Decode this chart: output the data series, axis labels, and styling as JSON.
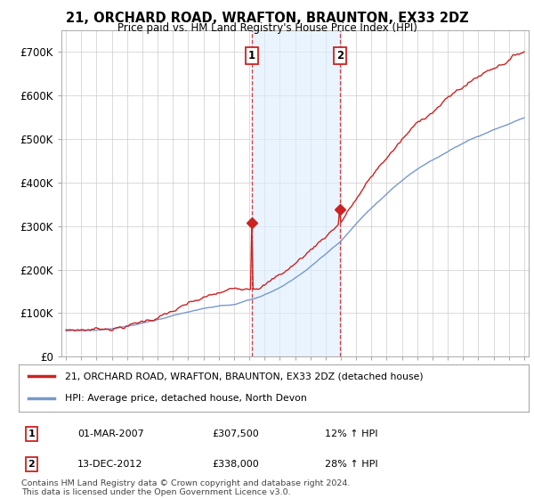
{
  "title": "21, ORCHARD ROAD, WRAFTON, BRAUNTON, EX33 2DZ",
  "subtitle": "Price paid vs. HM Land Registry's House Price Index (HPI)",
  "legend_line1": "21, ORCHARD ROAD, WRAFTON, BRAUNTON, EX33 2DZ (detached house)",
  "legend_line2": "HPI: Average price, detached house, North Devon",
  "annotation1_label": "1",
  "annotation1_date": "01-MAR-2007",
  "annotation1_price": "£307,500",
  "annotation1_hpi": "12% ↑ HPI",
  "annotation2_label": "2",
  "annotation2_date": "13-DEC-2012",
  "annotation2_price": "£338,000",
  "annotation2_hpi": "28% ↑ HPI",
  "footer": "Contains HM Land Registry data © Crown copyright and database right 2024.\nThis data is licensed under the Open Government Licence v3.0.",
  "hpi_color": "#7799cc",
  "price_color": "#cc2222",
  "annotation_box_color": "#cc2222",
  "shading_color": "#ddeeff",
  "ylim": [
    0,
    750000
  ],
  "yticks": [
    0,
    100000,
    200000,
    300000,
    400000,
    500000,
    600000,
    700000
  ],
  "sale1_x": 2007.17,
  "sale1_y": 307500,
  "sale2_x": 2012.95,
  "sale2_y": 338000,
  "shade_x1": 2007.17,
  "shade_x2": 2012.95,
  "xlim_left": 1994.7,
  "xlim_right": 2025.3
}
